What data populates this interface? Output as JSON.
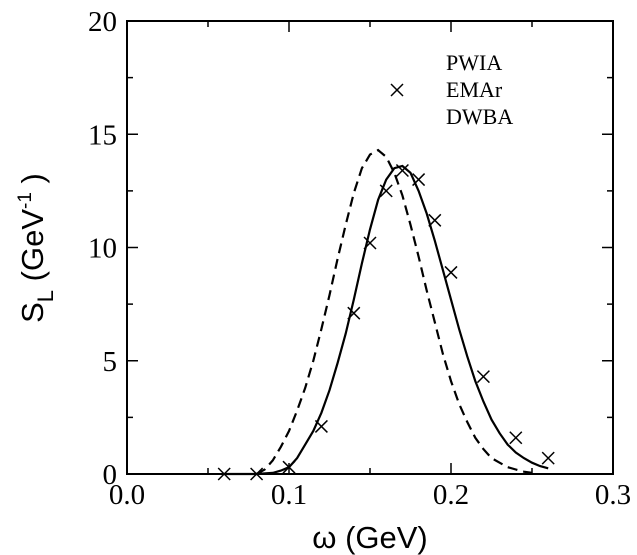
{
  "chart_data": {
    "type": "line",
    "title": "",
    "xlabel": "ω   (GeV)",
    "ylabel": {
      "main": "S",
      "sub": "L",
      "unit_open": "  (GeV",
      "unit_sup": "-1",
      "unit_close": " )"
    },
    "xlim": [
      0,
      0.3
    ],
    "ylim": [
      0,
      20
    ],
    "xticks": [
      0.0,
      0.1,
      0.2,
      0.3
    ],
    "xtick_labels": [
      "0.0",
      "0.1",
      "0.2",
      "0.3"
    ],
    "yticks": [
      0,
      5,
      10,
      15,
      20
    ],
    "ytick_labels": [
      "0",
      "5",
      "10",
      "15",
      "20"
    ],
    "grid": false,
    "legend_position": "top-right",
    "series": [
      {
        "name": "PWIA",
        "style": "dashed",
        "color": "#000000",
        "x": [
          0.08,
          0.085,
          0.09,
          0.095,
          0.1,
          0.105,
          0.11,
          0.115,
          0.12,
          0.125,
          0.13,
          0.135,
          0.14,
          0.145,
          0.15,
          0.155,
          0.16,
          0.165,
          0.17,
          0.175,
          0.18,
          0.185,
          0.19,
          0.195,
          0.2,
          0.205,
          0.21,
          0.215,
          0.22,
          0.225,
          0.23,
          0.235,
          0.24,
          0.245,
          0.25
        ],
        "y": [
          0.0,
          0.2,
          0.6,
          1.2,
          1.9,
          2.8,
          3.8,
          5.0,
          6.4,
          7.9,
          9.5,
          11.0,
          12.4,
          13.5,
          14.1,
          14.3,
          14.0,
          13.3,
          12.3,
          11.0,
          9.6,
          8.1,
          6.7,
          5.3,
          4.1,
          3.1,
          2.3,
          1.6,
          1.1,
          0.7,
          0.5,
          0.3,
          0.2,
          0.1,
          0.05
        ]
      },
      {
        "name": "EMAr",
        "style": "markers",
        "marker": "x",
        "color": "#000000",
        "x": [
          0.06,
          0.08,
          0.1,
          0.12,
          0.14,
          0.15,
          0.16,
          0.17,
          0.18,
          0.19,
          0.2,
          0.22,
          0.24,
          0.26
        ],
        "y": [
          0.0,
          0.0,
          0.3,
          2.1,
          7.1,
          10.2,
          12.5,
          13.4,
          13.0,
          11.2,
          8.9,
          4.3,
          1.6,
          0.7
        ]
      },
      {
        "name": "DWBA",
        "style": "solid",
        "color": "#000000",
        "x": [
          0.06,
          0.08,
          0.09,
          0.095,
          0.1,
          0.105,
          0.11,
          0.115,
          0.12,
          0.125,
          0.13,
          0.135,
          0.14,
          0.145,
          0.15,
          0.155,
          0.16,
          0.165,
          0.17,
          0.175,
          0.18,
          0.185,
          0.19,
          0.195,
          0.2,
          0.205,
          0.21,
          0.215,
          0.22,
          0.225,
          0.23,
          0.235,
          0.24,
          0.245,
          0.25,
          0.255,
          0.26
        ],
        "y": [
          0.0,
          0.0,
          0.05,
          0.15,
          0.3,
          0.7,
          1.3,
          1.9,
          2.7,
          3.7,
          4.9,
          6.2,
          7.7,
          9.3,
          10.8,
          12.1,
          13.0,
          13.5,
          13.6,
          13.3,
          12.5,
          11.5,
          10.3,
          9.0,
          7.7,
          6.4,
          5.2,
          4.1,
          3.2,
          2.4,
          1.8,
          1.3,
          0.95,
          0.7,
          0.5,
          0.35,
          0.25
        ]
      }
    ]
  }
}
